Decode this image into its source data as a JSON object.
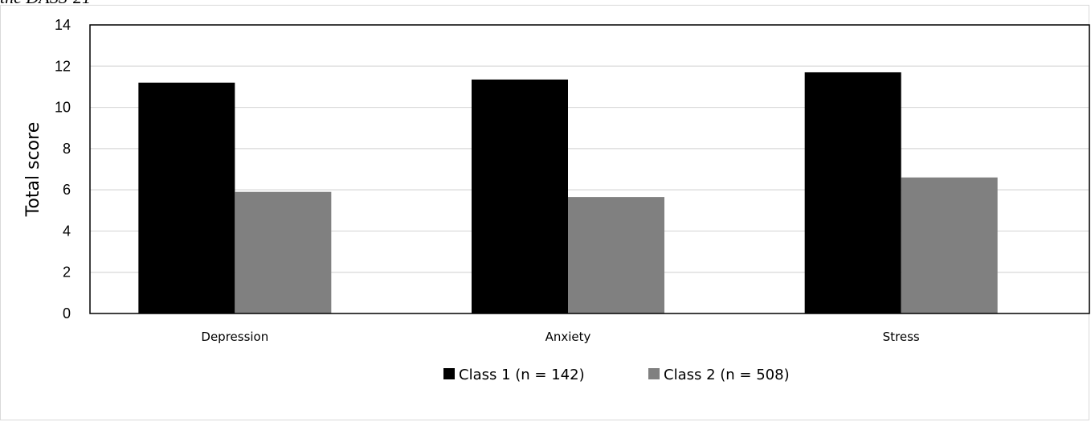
{
  "caption_fragment": "the DASS-21",
  "chart_data": {
    "type": "bar",
    "categories": [
      "Depression",
      "Anxiety",
      "Stress"
    ],
    "series": [
      {
        "name": "Class 1 (n = 142)",
        "values": [
          11.2,
          11.35,
          11.7
        ],
        "color": "#000000"
      },
      {
        "name": "Class 2 (n = 508)",
        "values": [
          5.9,
          5.65,
          6.6
        ],
        "color": "#808080"
      }
    ],
    "title": "",
    "xlabel": "",
    "ylabel": "Total score",
    "ylim": [
      0,
      14
    ],
    "yticks": [
      0,
      2,
      4,
      6,
      8,
      10,
      12,
      14
    ],
    "grid": true,
    "legend_position": "bottom"
  }
}
